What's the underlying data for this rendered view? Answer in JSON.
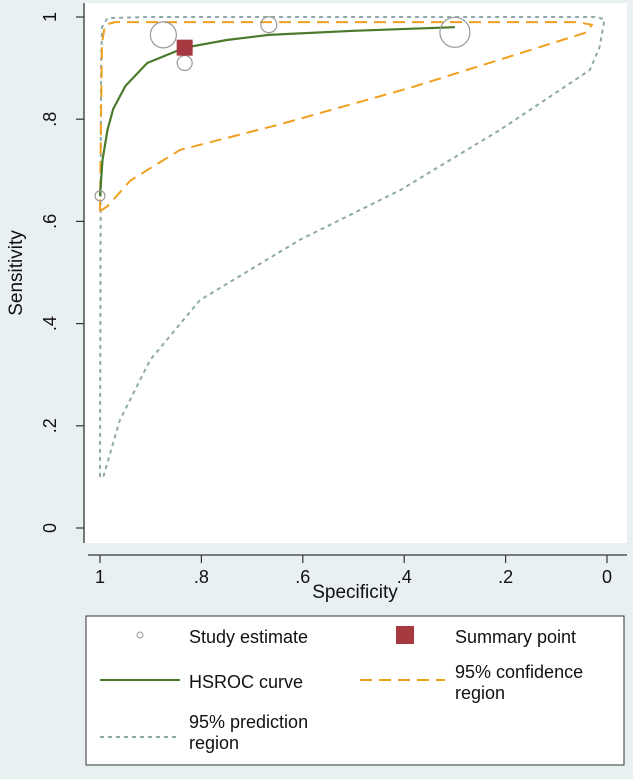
{
  "chart_data": {
    "type": "scatter",
    "xlabel": "Specificity",
    "ylabel": "Sensitivity",
    "xlim": [
      1,
      0
    ],
    "ylim": [
      0,
      1
    ],
    "x_reversed": true,
    "xticks": [
      {
        "v": 1,
        "label": "1"
      },
      {
        "v": 0.8,
        "label": ".8"
      },
      {
        "v": 0.6,
        "label": ".6"
      },
      {
        "v": 0.4,
        "label": ".4"
      },
      {
        "v": 0.2,
        "label": ".2"
      },
      {
        "v": 0,
        "label": "0"
      }
    ],
    "yticks": [
      {
        "v": 0,
        "label": "0"
      },
      {
        "v": 0.2,
        "label": ".2"
      },
      {
        "v": 0.4,
        "label": ".4"
      },
      {
        "v": 0.6,
        "label": ".6"
      },
      {
        "v": 0.8,
        "label": ".8"
      },
      {
        "v": 1,
        "label": "1"
      }
    ],
    "grid": false,
    "legend_placement": "bottom",
    "colors": {
      "study": "#999999",
      "summary": "#a5393f",
      "hsroc": "#4a7a2c",
      "confidence": "#f0a020",
      "prediction": "#8fa8a8",
      "background": "#e8f0f2"
    },
    "study_estimates": [
      {
        "spec": 1.0,
        "sens": 0.65,
        "relative_weight": 1.0
      },
      {
        "spec": 0.875,
        "sens": 0.965,
        "relative_weight": 2.6
      },
      {
        "spec": 0.833,
        "sens": 0.91,
        "relative_weight": 1.5
      },
      {
        "spec": 0.667,
        "sens": 0.985,
        "relative_weight": 1.6
      },
      {
        "spec": 0.3,
        "sens": 0.97,
        "relative_weight": 3.0
      }
    ],
    "summary_point": {
      "spec": 0.833,
      "sens": 0.94
    },
    "hsroc_curve": [
      [
        1.0,
        0.65
      ],
      [
        0.995,
        0.72
      ],
      [
        0.985,
        0.78
      ],
      [
        0.974,
        0.82
      ],
      [
        0.95,
        0.865
      ],
      [
        0.907,
        0.91
      ],
      [
        0.833,
        0.94
      ],
      [
        0.75,
        0.955
      ],
      [
        0.667,
        0.965
      ],
      [
        0.5,
        0.973
      ],
      [
        0.3,
        0.98
      ]
    ],
    "confidence_region": [
      [
        1.0,
        0.62
      ],
      [
        0.998,
        0.8
      ],
      [
        0.996,
        0.95
      ],
      [
        0.99,
        0.985
      ],
      [
        0.97,
        0.99
      ],
      [
        0.5,
        0.99
      ],
      [
        0.06,
        0.99
      ],
      [
        0.03,
        0.985
      ],
      [
        0.04,
        0.97
      ],
      [
        0.152,
        0.935
      ],
      [
        0.383,
        0.863
      ],
      [
        0.645,
        0.79
      ],
      [
        0.842,
        0.74
      ],
      [
        0.94,
        0.68
      ],
      [
        0.985,
        0.63
      ],
      [
        1.0,
        0.62
      ]
    ],
    "prediction_region": [
      [
        1.0,
        0.1
      ],
      [
        0.999,
        0.5
      ],
      [
        0.998,
        0.9
      ],
      [
        0.996,
        0.98
      ],
      [
        0.985,
        0.998
      ],
      [
        0.9,
        1.0
      ],
      [
        0.02,
        1.0
      ],
      [
        0.005,
        0.995
      ],
      [
        0.015,
        0.94
      ],
      [
        0.034,
        0.896
      ],
      [
        0.211,
        0.779
      ],
      [
        0.408,
        0.661
      ],
      [
        0.606,
        0.564
      ],
      [
        0.803,
        0.446
      ],
      [
        0.901,
        0.329
      ],
      [
        0.961,
        0.211
      ],
      [
        0.994,
        0.098
      ],
      [
        1.0,
        0.1
      ]
    ],
    "legend": {
      "study": "Study estimate",
      "summary": "Summary point",
      "hsroc": "HSROC curve",
      "confidence": "95% confidence region",
      "confidence_l1": "95% confidence",
      "confidence_l2": "region",
      "prediction_l1": "95% prediction",
      "prediction_l2": "region"
    }
  }
}
